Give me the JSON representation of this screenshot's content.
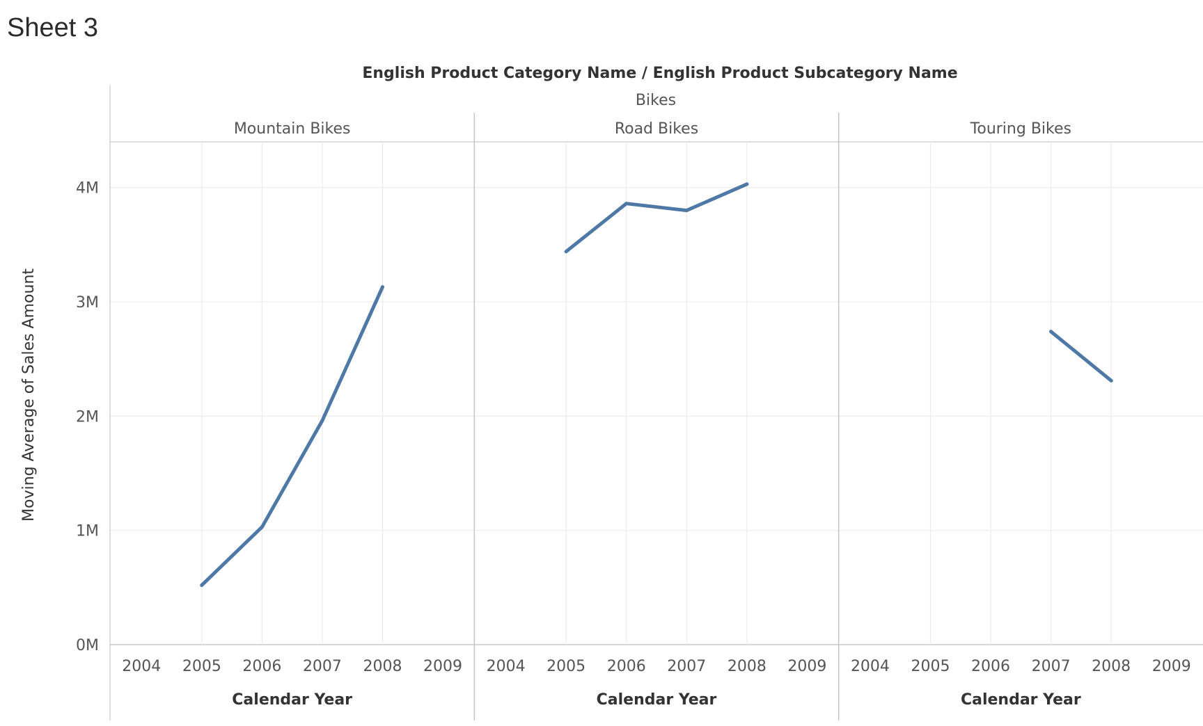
{
  "sheet": {
    "title": "Sheet 3"
  },
  "chart_data": {
    "type": "line",
    "title": "",
    "column_header_title": "English Product Category Name  /  English Product Subcategory Name",
    "category": "Bikes",
    "xlabel": "Calendar Year",
    "ylabel": "Moving Average of Sales Amount",
    "x_ticks": [
      "2004",
      "2005",
      "2006",
      "2007",
      "2008",
      "2009"
    ],
    "y_ticks": [
      "0M",
      "1M",
      "2M",
      "3M",
      "4M"
    ],
    "ylim": [
      0,
      4400000
    ],
    "xlim": [
      2004,
      2009
    ],
    "grid": true,
    "line_color": "#4e79a7",
    "panels": [
      {
        "subcategory": "Mountain Bikes",
        "x": [
          2005,
          2006,
          2007,
          2008
        ],
        "y": [
          520000,
          1030000,
          1960000,
          3130000
        ]
      },
      {
        "subcategory": "Road Bikes",
        "x": [
          2005,
          2006,
          2007,
          2008
        ],
        "y": [
          3440000,
          3860000,
          3800000,
          4030000
        ]
      },
      {
        "subcategory": "Touring Bikes",
        "x": [
          2007,
          2008
        ],
        "y": [
          2740000,
          2310000
        ]
      }
    ]
  }
}
